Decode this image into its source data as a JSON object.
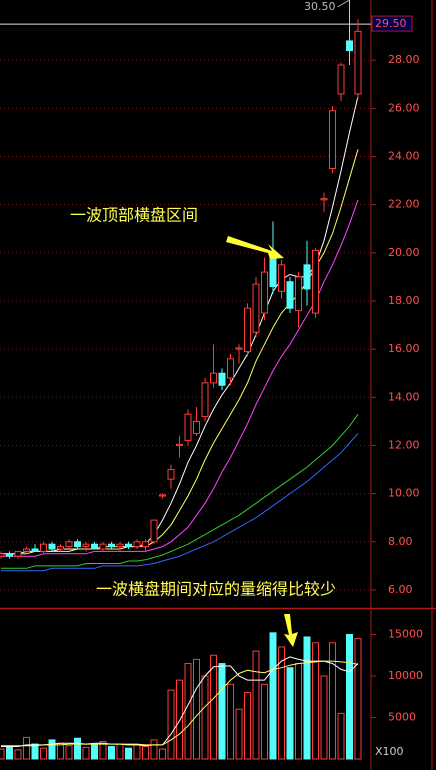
{
  "chart_data": [
    {
      "type": "candlestick",
      "annotation": "一波顶部横盘区间",
      "ylim": [
        5.25,
        30.5
      ],
      "yticks": [
        {
          "value": 6,
          "label": "6.00"
        },
        {
          "value": 8,
          "label": "8.00"
        },
        {
          "value": 10,
          "label": "10.00"
        },
        {
          "value": 12,
          "label": "12.00"
        },
        {
          "value": 14,
          "label": "14.00"
        },
        {
          "value": 16,
          "label": "16.00"
        },
        {
          "value": 18,
          "label": "18.00"
        },
        {
          "value": 20,
          "label": "20.00"
        },
        {
          "value": 22,
          "label": "22.00"
        },
        {
          "value": 24,
          "label": "24.00"
        },
        {
          "value": 26,
          "label": "26.00"
        },
        {
          "value": 28,
          "label": "28.00"
        }
      ],
      "grid": true,
      "up_color": "#ff3c3c",
      "down_color": "#54fcfc",
      "last_price": {
        "value": 29.5,
        "label": "29.50"
      },
      "high_label": {
        "value": 30.5,
        "label": "30.50"
      },
      "open": [
        7.4,
        7.5,
        7.4,
        7.6,
        7.7,
        7.6,
        7.9,
        7.7,
        7.8,
        8.0,
        7.8,
        7.9,
        7.7,
        7.9,
        7.8,
        7.9,
        7.8,
        7.8,
        8.0,
        9.9,
        10.6,
        12.0,
        12.2,
        12.5,
        13.2,
        14.6,
        15.0,
        14.8,
        16.0,
        15.9,
        16.7,
        17.5,
        19.8,
        18.4,
        18.8,
        17.6,
        19.5,
        17.5,
        22.2,
        23.5,
        26.6,
        28.8,
        26.6
      ],
      "high": [
        7.6,
        7.6,
        7.6,
        7.8,
        7.9,
        8.0,
        8.0,
        7.9,
        8.1,
        8.1,
        8.0,
        8.0,
        8.0,
        8.0,
        8.0,
        8.0,
        8.1,
        8.1,
        8.9,
        10.0,
        11.2,
        12.4,
        13.5,
        13.6,
        14.8,
        16.2,
        15.2,
        15.8,
        16.2,
        17.9,
        19.0,
        19.8,
        21.3,
        19.7,
        19.0,
        19.2,
        20.5,
        20.2,
        22.5,
        26.1,
        27.9,
        30.5,
        29.7
      ],
      "low": [
        7.3,
        7.3,
        7.3,
        7.5,
        7.6,
        7.5,
        7.6,
        7.6,
        7.7,
        7.7,
        7.6,
        7.7,
        7.6,
        7.7,
        7.6,
        7.7,
        7.7,
        7.6,
        7.9,
        9.8,
        10.2,
        11.5,
        12.0,
        12.4,
        13.0,
        14.4,
        14.3,
        14.5,
        15.4,
        15.7,
        16.5,
        17.2,
        18.3,
        18.1,
        17.5,
        16.9,
        17.8,
        17.3,
        21.7,
        23.3,
        26.3,
        27.8,
        26.4
      ],
      "close": [
        7.5,
        7.4,
        7.6,
        7.7,
        7.6,
        7.9,
        7.7,
        7.8,
        8.0,
        7.8,
        7.9,
        7.7,
        7.9,
        7.8,
        7.9,
        7.8,
        8.0,
        8.0,
        8.9,
        9.95,
        11.0,
        12.05,
        13.3,
        13.0,
        14.6,
        15.0,
        14.5,
        15.6,
        16.05,
        17.7,
        18.7,
        19.2,
        18.6,
        19.5,
        17.7,
        19.0,
        18.5,
        20.1,
        22.25,
        25.9,
        27.8,
        28.4,
        29.2
      ],
      "ma_series": [
        {
          "color": "#ffffff",
          "values": [
            7.5,
            7.5,
            7.5,
            7.6,
            7.6,
            7.6,
            7.6,
            7.7,
            7.7,
            7.7,
            7.7,
            7.7,
            7.8,
            7.8,
            7.8,
            7.8,
            7.8,
            7.9,
            8.3,
            8.9,
            9.6,
            10.4,
            11.3,
            12.0,
            12.8,
            13.5,
            14.1,
            14.6,
            15.2,
            15.8,
            16.6,
            17.5,
            18.4,
            18.9,
            19.1,
            19.0,
            19.0,
            19.5,
            20.5,
            21.9,
            23.4,
            25.0,
            26.5
          ]
        },
        {
          "color": "#ffff66",
          "values": [
            7.5,
            7.5,
            7.5,
            7.5,
            7.6,
            7.6,
            7.6,
            7.6,
            7.6,
            7.7,
            7.7,
            7.7,
            7.7,
            7.7,
            7.7,
            7.8,
            7.8,
            7.8,
            8.0,
            8.3,
            8.7,
            9.3,
            9.9,
            10.6,
            11.4,
            12.1,
            12.7,
            13.3,
            13.9,
            14.6,
            15.5,
            16.2,
            16.9,
            17.5,
            17.9,
            18.3,
            18.8,
            19.4,
            20.0,
            20.8,
            21.9,
            23.1,
            24.3
          ]
        },
        {
          "color": "#ff44ff",
          "values": [
            7.4,
            7.4,
            7.4,
            7.4,
            7.4,
            7.5,
            7.5,
            7.5,
            7.5,
            7.5,
            7.5,
            7.6,
            7.6,
            7.6,
            7.6,
            7.6,
            7.6,
            7.6,
            7.7,
            7.8,
            8.0,
            8.3,
            8.6,
            9.1,
            9.6,
            10.2,
            10.9,
            11.5,
            12.2,
            12.9,
            13.7,
            14.4,
            15.1,
            15.7,
            16.2,
            16.8,
            17.4,
            18.0,
            18.8,
            19.5,
            20.3,
            21.2,
            22.2
          ]
        },
        {
          "color": "#33cc33",
          "values": [
            6.9,
            6.9,
            6.9,
            6.9,
            7.0,
            7.0,
            7.0,
            7.0,
            7.0,
            7.0,
            7.1,
            7.1,
            7.1,
            7.1,
            7.1,
            7.2,
            7.2,
            7.25,
            7.35,
            7.45,
            7.6,
            7.75,
            7.9,
            8.1,
            8.3,
            8.5,
            8.7,
            8.9,
            9.1,
            9.35,
            9.6,
            9.85,
            10.1,
            10.35,
            10.6,
            10.85,
            11.1,
            11.4,
            11.7,
            12.0,
            12.4,
            12.8,
            13.3
          ]
        },
        {
          "color": "#3366ff",
          "values": [
            6.8,
            6.8,
            6.8,
            6.8,
            6.8,
            6.8,
            6.9,
            6.9,
            6.9,
            6.9,
            6.9,
            6.9,
            7.0,
            7.0,
            7.0,
            7.0,
            7.0,
            7.05,
            7.1,
            7.2,
            7.3,
            7.4,
            7.55,
            7.7,
            7.85,
            8.0,
            8.2,
            8.4,
            8.6,
            8.8,
            9.0,
            9.25,
            9.5,
            9.75,
            10.0,
            10.25,
            10.5,
            10.8,
            11.1,
            11.4,
            11.7,
            12.1,
            12.5
          ]
        }
      ]
    },
    {
      "type": "bar",
      "annotation": "一波横盘期间对应的量缩得比较少",
      "unit_label": "X100",
      "ylim": [
        0,
        17950
      ],
      "yticks": [
        5000,
        10000,
        15000
      ],
      "values": [
        1200,
        1500,
        1100,
        2600,
        1800,
        1300,
        2300,
        1900,
        1600,
        2500,
        1400,
        1700,
        2100,
        1500,
        1800,
        1300,
        1700,
        1500,
        2300,
        1200,
        8300,
        9500,
        11500,
        12000,
        10000,
        12500,
        11500,
        9000,
        6000,
        8000,
        13000,
        9000,
        15200,
        13500,
        11000,
        11500,
        14700,
        14000,
        10000,
        14000,
        5500,
        15000,
        14500
      ],
      "ma_series": [
        {
          "color": "#ffffff",
          "values": [
            1500,
            1500,
            1500,
            1700,
            1700,
            1700,
            1800,
            1900,
            1900,
            1900,
            1800,
            1900,
            1900,
            1800,
            1800,
            1700,
            1700,
            1600,
            1700,
            1700,
            3000,
            4600,
            6500,
            8500,
            10000,
            11100,
            11200,
            11200,
            10000,
            9500,
            9500,
            9500,
            10800,
            11800,
            12300,
            12000,
            11800,
            11800,
            11800,
            11500,
            10800,
            10500,
            11500
          ]
        },
        {
          "color": "#ffff66",
          "values": [
            1600,
            1600,
            1600,
            1600,
            1600,
            1700,
            1700,
            1700,
            1800,
            1800,
            1800,
            1800,
            1800,
            1800,
            1800,
            1800,
            1800,
            1700,
            1700,
            1700,
            2300,
            3000,
            4000,
            5200,
            6300,
            7300,
            8400,
            9500,
            10300,
            10700,
            10500,
            10400,
            10800,
            11000,
            11300,
            11500,
            11600,
            11700,
            11800,
            11800,
            11700,
            11600,
            11400
          ]
        }
      ]
    }
  ]
}
